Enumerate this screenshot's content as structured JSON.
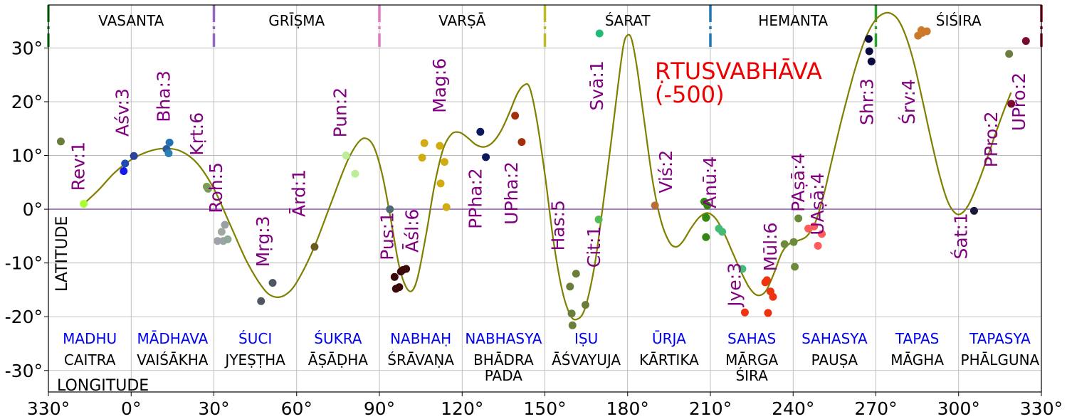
{
  "chart_data": {
    "type": "scatter",
    "title": [
      "ṚTUSVABHĀVA",
      "(-500)"
    ],
    "xlabel": "LONGITUDE",
    "ylabel": "LATITUDE",
    "xlim": [
      330,
      690
    ],
    "ylim": [
      -34,
      38
    ],
    "grid": true,
    "x_ticks": [
      {
        "v": 330,
        "label": "330°"
      },
      {
        "v": 360,
        "label": "0°"
      },
      {
        "v": 390,
        "label": "30°"
      },
      {
        "v": 420,
        "label": "60°"
      },
      {
        "v": 450,
        "label": "90°"
      },
      {
        "v": 480,
        "label": "120°"
      },
      {
        "v": 510,
        "label": "150°"
      },
      {
        "v": 540,
        "label": "180°"
      },
      {
        "v": 570,
        "label": "210°"
      },
      {
        "v": 600,
        "label": "240°"
      },
      {
        "v": 630,
        "label": "270°"
      },
      {
        "v": 660,
        "label": "300°"
      },
      {
        "v": 690,
        "label": "330°"
      }
    ],
    "y_ticks": [
      {
        "v": 30,
        "label": "30°"
      },
      {
        "v": 20,
        "label": "20°"
      },
      {
        "v": 10,
        "label": "10°"
      },
      {
        "v": 0,
        "label": "0°"
      },
      {
        "v": -10,
        "label": "-10°"
      },
      {
        "v": -20,
        "label": "-20°"
      },
      {
        "v": -30,
        "label": "-30°"
      }
    ],
    "seasons": [
      {
        "name": "VASANTA",
        "x": 360
      },
      {
        "name": "GRĪṢMA",
        "x": 420
      },
      {
        "name": "VARṢĀ",
        "x": 480
      },
      {
        "name": "ŚARAT",
        "x": 540
      },
      {
        "name": "HEMANTA",
        "x": 600
      },
      {
        "name": "ŚIŚIRA",
        "x": 660
      }
    ],
    "season_boundaries": [
      {
        "x": 330,
        "color": "#2ca02c"
      },
      {
        "x": 390,
        "color": "#9467bd"
      },
      {
        "x": 450,
        "color": "#e377c2"
      },
      {
        "x": 510,
        "color": "#bcbd22"
      },
      {
        "x": 570,
        "color": "#1f77b4"
      },
      {
        "x": 630,
        "color": "#2ca02c"
      },
      {
        "x": 690,
        "color": "#a00020"
      }
    ],
    "months": [
      {
        "vedic": "MADHU",
        "civil": "CAITRA",
        "x": 345
      },
      {
        "vedic": "MĀDHAVA",
        "civil": "VAIŚĀKHA",
        "x": 375
      },
      {
        "vedic": "ŚUCI",
        "civil": "JYEṢṬHA",
        "x": 405
      },
      {
        "vedic": "ŚUKRA",
        "civil": "ĀṢĀḌHA",
        "x": 435
      },
      {
        "vedic": "NABHAḤ",
        "civil": "ŚRĀVAṆA",
        "x": 465
      },
      {
        "vedic": "NABHASYA",
        "civil": "BHĀDRA",
        "civil2": "PADA",
        "x": 495
      },
      {
        "vedic": "IṢU",
        "civil": "ĀŚVAYUJA",
        "x": 525
      },
      {
        "vedic": "ŪRJA",
        "civil": "KĀRTIKA",
        "x": 555
      },
      {
        "vedic": "SAHAS",
        "civil": "MĀRGA",
        "civil2": "ŚIRA",
        "x": 585
      },
      {
        "vedic": "SAHASYA",
        "civil": "PAUṢA",
        "x": 615
      },
      {
        "vedic": "TAPAS",
        "civil": "MĀGHA",
        "x": 645
      },
      {
        "vedic": "TAPASYA",
        "civil": "PHĀLGUNA",
        "x": 675
      }
    ],
    "nakshatra_labels": [
      {
        "label": "Rev:1",
        "x": 343,
        "y": 8
      },
      {
        "label": "Aśv:3",
        "x": 359,
        "y": 18
      },
      {
        "label": "Bha:3",
        "x": 374,
        "y": 21
      },
      {
        "label": "Kṛt:6",
        "x": 386,
        "y": 14
      },
      {
        "label": "Roh:5",
        "x": 393,
        "y": 4
      },
      {
        "label": "Mṛg:3",
        "x": 410,
        "y": -6
      },
      {
        "label": "Ārd:1",
        "x": 423,
        "y": 3
      },
      {
        "label": "Pun:2",
        "x": 438,
        "y": 18
      },
      {
        "label": "Pus:1",
        "x": 455,
        "y": -5
      },
      {
        "label": "Āśl:6",
        "x": 464,
        "y": -4
      },
      {
        "label": "Mag:6",
        "x": 474,
        "y": 23
      },
      {
        "label": "PPha:2",
        "x": 487,
        "y": 2
      },
      {
        "label": "UPha:2",
        "x": 500,
        "y": 3
      },
      {
        "label": "Has:5",
        "x": 517,
        "y": -3
      },
      {
        "label": "Cit:1",
        "x": 530,
        "y": -7
      },
      {
        "label": "Svā:1",
        "x": 531,
        "y": 23
      },
      {
        "label": "Viś:2",
        "x": 556,
        "y": 7
      },
      {
        "label": "Anū:4",
        "x": 572,
        "y": 5
      },
      {
        "label": "Jye:3",
        "x": 581,
        "y": -14
      },
      {
        "label": "Mūl:6",
        "x": 594,
        "y": -7
      },
      {
        "label": "PAṣā:4",
        "x": 604,
        "y": 5
      },
      {
        "label": "UAṣā:4",
        "x": 611,
        "y": 1
      },
      {
        "label": "Shr:3",
        "x": 629,
        "y": 20
      },
      {
        "label": "Śrv:4",
        "x": 644,
        "y": 20
      },
      {
        "label": "Śat:1",
        "x": 663,
        "y": -5
      },
      {
        "label": "PPro:2",
        "x": 674,
        "y": 13
      },
      {
        "label": "UPro:2",
        "x": 684,
        "y": 20
      }
    ],
    "star_points": [
      {
        "x": 334.5,
        "y": 12.6,
        "color": "#6b7d3a"
      },
      {
        "x": 342.8,
        "y": 1.0,
        "color": "#aaff33"
      },
      {
        "x": 357.3,
        "y": 7.1,
        "color": "#1919ee"
      },
      {
        "x": 357.8,
        "y": 8.5,
        "color": "#1f4bb4"
      },
      {
        "x": 361.0,
        "y": 9.9,
        "color": "#29429e"
      },
      {
        "x": 372.8,
        "y": 11.2,
        "color": "#2a5d95"
      },
      {
        "x": 373.6,
        "y": 10.4,
        "color": "#2a7fb8"
      },
      {
        "x": 373.9,
        "y": 12.4,
        "color": "#2370b4"
      },
      {
        "x": 387.4,
        "y": 4.2,
        "color": "#7a9e55"
      },
      {
        "x": 387.9,
        "y": 3.8,
        "color": "#7c9a5c"
      },
      {
        "x": 391.3,
        "y": -5.9,
        "color": "#9ca4a8"
      },
      {
        "x": 392.8,
        "y": -4.2,
        "color": "#a0a8a0"
      },
      {
        "x": 393.4,
        "y": -5.9,
        "color": "#9ca4a8"
      },
      {
        "x": 394.0,
        "y": -2.9,
        "color": "#98a0a6"
      },
      {
        "x": 395.0,
        "y": -5.6,
        "color": "#8fa89a"
      },
      {
        "x": 407.1,
        "y": -17.1,
        "color": "#4e5760"
      },
      {
        "x": 411.3,
        "y": -13.7,
        "color": "#4e5760"
      },
      {
        "x": 426.5,
        "y": -7.0,
        "color": "#6b5a1e"
      },
      {
        "x": 437.9,
        "y": 10.0,
        "color": "#bbee99"
      },
      {
        "x": 441.2,
        "y": 6.6,
        "color": "#bbee99"
      },
      {
        "x": 453.8,
        "y": 0.0,
        "color": "#4d6a70"
      },
      {
        "x": 455.5,
        "y": -12.6,
        "color": "#3a0a0a"
      },
      {
        "x": 456.0,
        "y": -14.8,
        "color": "#3a0a0a"
      },
      {
        "x": 457.2,
        "y": -14.5,
        "color": "#3a0a0a"
      },
      {
        "x": 457.8,
        "y": -11.6,
        "color": "#3a0a0a"
      },
      {
        "x": 458.5,
        "y": -11.3,
        "color": "#3a0a0a"
      },
      {
        "x": 459.7,
        "y": -11.1,
        "color": "#3a0a0a"
      },
      {
        "x": 465.5,
        "y": 9.6,
        "color": "#d0ac10"
      },
      {
        "x": 466.3,
        "y": 12.3,
        "color": "#d0ac10"
      },
      {
        "x": 471.9,
        "y": 11.8,
        "color": "#d0ac10"
      },
      {
        "x": 472.2,
        "y": 4.8,
        "color": "#d0ac10"
      },
      {
        "x": 473.6,
        "y": 8.8,
        "color": "#d0ac10"
      },
      {
        "x": 474.3,
        "y": 0.4,
        "color": "#d0ac10"
      },
      {
        "x": 486.6,
        "y": 14.4,
        "color": "#0a1a5c"
      },
      {
        "x": 488.6,
        "y": 9.7,
        "color": "#0a1a5c"
      },
      {
        "x": 499.2,
        "y": 17.4,
        "color": "#a3300a"
      },
      {
        "x": 501.6,
        "y": 12.5,
        "color": "#a3300a"
      },
      {
        "x": 519.1,
        "y": -14.4,
        "color": "#6b7d3a"
      },
      {
        "x": 519.7,
        "y": -19.4,
        "color": "#6b7d3a"
      },
      {
        "x": 520.0,
        "y": -21.6,
        "color": "#6b7d3a"
      },
      {
        "x": 521.3,
        "y": -12.0,
        "color": "#6b7d3a"
      },
      {
        "x": 524.7,
        "y": -17.8,
        "color": "#6b7d3a"
      },
      {
        "x": 529.5,
        "y": -1.9,
        "color": "#55bb55"
      },
      {
        "x": 529.8,
        "y": 32.7,
        "color": "#22bb77"
      },
      {
        "x": 549.9,
        "y": 0.7,
        "color": "#b5703a"
      },
      {
        "x": 567.8,
        "y": 1.4,
        "color": "#338811"
      },
      {
        "x": 568.4,
        "y": -1.6,
        "color": "#338811"
      },
      {
        "x": 568.4,
        "y": -1.5,
        "color": "#338811"
      },
      {
        "x": 568.4,
        "y": -5.2,
        "color": "#338811"
      },
      {
        "x": 568.9,
        "y": 0.7,
        "color": "#338811"
      },
      {
        "x": 573.1,
        "y": -3.6,
        "color": "#44bb77"
      },
      {
        "x": 574.3,
        "y": -4.2,
        "color": "#44bb77"
      },
      {
        "x": 581.6,
        "y": -11.1,
        "color": "#44bb77"
      },
      {
        "x": 582.5,
        "y": -19.2,
        "color": "#ee3311"
      },
      {
        "x": 589.9,
        "y": -13.6,
        "color": "#ee3311"
      },
      {
        "x": 590.5,
        "y": -13.2,
        "color": "#ee3311"
      },
      {
        "x": 590.9,
        "y": -19.3,
        "color": "#ee3311"
      },
      {
        "x": 591.8,
        "y": -15.3,
        "color": "#ee3311"
      },
      {
        "x": 592.7,
        "y": -16.3,
        "color": "#ee3311"
      },
      {
        "x": 596.9,
        "y": -6.5,
        "color": "#6b8a3a"
      },
      {
        "x": 600.2,
        "y": -6.1,
        "color": "#6b8a3a"
      },
      {
        "x": 600.6,
        "y": -10.7,
        "color": "#6b8a3a"
      },
      {
        "x": 601.9,
        "y": -1.7,
        "color": "#6b8a3a"
      },
      {
        "x": 605.5,
        "y": -3.6,
        "color": "#ff5c5c"
      },
      {
        "x": 607.6,
        "y": -3.2,
        "color": "#ff5c5c"
      },
      {
        "x": 609.0,
        "y": -6.8,
        "color": "#ff5c5c"
      },
      {
        "x": 610.4,
        "y": -4.6,
        "color": "#ff5c5c"
      },
      {
        "x": 627.4,
        "y": 31.7,
        "color": "#0a0a40"
      },
      {
        "x": 627.6,
        "y": 29.4,
        "color": "#0a0a40"
      },
      {
        "x": 628.4,
        "y": 27.5,
        "color": "#0a0a40"
      },
      {
        "x": 645.3,
        "y": 32.3,
        "color": "#cc7a2a"
      },
      {
        "x": 646.5,
        "y": 33.3,
        "color": "#cc7a2a"
      },
      {
        "x": 646.8,
        "y": 32.8,
        "color": "#cc7a2a"
      },
      {
        "x": 648.5,
        "y": 33.1,
        "color": "#cc7a2a"
      },
      {
        "x": 665.6,
        "y": -0.3,
        "color": "#1a1a3a"
      },
      {
        "x": 678.3,
        "y": 28.9,
        "color": "#6b7d3a"
      },
      {
        "x": 679.1,
        "y": 19.6,
        "color": "#7a0a30"
      },
      {
        "x": 684.4,
        "y": 31.3,
        "color": "#7a0a30"
      }
    ],
    "curve": [
      [
        342.8,
        1.0
      ],
      [
        348,
        3.5
      ],
      [
        354,
        6.8
      ],
      [
        360,
        9.2
      ],
      [
        366,
        10.7
      ],
      [
        372,
        11.3
      ],
      [
        378,
        10.8
      ],
      [
        384,
        8.5
      ],
      [
        390,
        3.8
      ],
      [
        396,
        -3.0
      ],
      [
        402,
        -9.8
      ],
      [
        408,
        -14.8
      ],
      [
        412,
        -16.3
      ],
      [
        416,
        -15.9
      ],
      [
        420,
        -13.6
      ],
      [
        426,
        -7.5
      ],
      [
        432,
        0.5
      ],
      [
        438,
        8.5
      ],
      [
        442,
        12.2
      ],
      [
        445,
        13.2
      ],
      [
        448,
        11.6
      ],
      [
        451,
        6.5
      ],
      [
        454,
        -1.5
      ],
      [
        457,
        -10.2
      ],
      [
        459.5,
        -14.3
      ],
      [
        461.8,
        -15.2
      ],
      [
        464,
        -12.4
      ],
      [
        467,
        -4.5
      ],
      [
        470,
        4.5
      ],
      [
        473,
        11.0
      ],
      [
        476,
        13.9
      ],
      [
        479,
        14.3
      ],
      [
        482,
        13.3
      ],
      [
        485,
        12.0
      ],
      [
        488,
        11.6
      ],
      [
        491,
        12.4
      ],
      [
        494,
        14.5
      ],
      [
        497,
        17.8
      ],
      [
        500,
        21.5
      ],
      [
        502.5,
        23.1
      ],
      [
        504.5,
        22.6
      ],
      [
        507,
        16.8
      ],
      [
        510,
        6.5
      ],
      [
        513,
        -5.5
      ],
      [
        516,
        -14.5
      ],
      [
        519,
        -19.5
      ],
      [
        521.5,
        -20.5
      ],
      [
        524.5,
        -18.5
      ],
      [
        528,
        -10.5
      ],
      [
        531,
        0.5
      ],
      [
        534,
        12.5
      ],
      [
        536.5,
        23.0
      ],
      [
        538.5,
        30.5
      ],
      [
        540,
        32.4
      ],
      [
        541.5,
        31.5
      ],
      [
        543.5,
        26.0
      ],
      [
        546,
        16.5
      ],
      [
        549,
        5.5
      ],
      [
        552,
        -2.0
      ],
      [
        555,
        -6.0
      ],
      [
        557.5,
        -7.0
      ],
      [
        560,
        -6.0
      ],
      [
        563,
        -3.5
      ],
      [
        566,
        -1.5
      ],
      [
        569,
        -0.7
      ],
      [
        572,
        -1.8
      ],
      [
        575,
        -4.5
      ],
      [
        578,
        -8.0
      ],
      [
        581,
        -11.5
      ],
      [
        584,
        -14.5
      ],
      [
        587,
        -16.0
      ],
      [
        590,
        -15.3
      ],
      [
        593,
        -12.0
      ],
      [
        596,
        -8.0
      ],
      [
        599,
        -6.3
      ],
      [
        602,
        -5.8
      ],
      [
        605,
        -5.0
      ],
      [
        608,
        -2.5
      ],
      [
        611,
        2.5
      ],
      [
        614,
        9.0
      ],
      [
        617,
        15.5
      ],
      [
        620,
        21.5
      ],
      [
        623,
        27.0
      ],
      [
        626,
        31.5
      ],
      [
        629,
        34.6
      ],
      [
        632,
        36.2
      ],
      [
        635,
        36.5
      ],
      [
        638,
        35.3
      ],
      [
        641,
        32.0
      ],
      [
        644,
        26.8
      ],
      [
        647,
        20.0
      ],
      [
        650,
        13.0
      ],
      [
        653,
        6.5
      ],
      [
        656,
        1.5
      ],
      [
        659,
        -0.8
      ],
      [
        661.5,
        -0.6
      ],
      [
        664,
        1.2
      ],
      [
        667,
        4.8
      ],
      [
        670,
        9.0
      ],
      [
        673,
        13.5
      ],
      [
        676,
        17.8
      ],
      [
        679,
        21.7
      ]
    ],
    "curve_color": "#808000",
    "zero_line_color": "#9467bd"
  }
}
